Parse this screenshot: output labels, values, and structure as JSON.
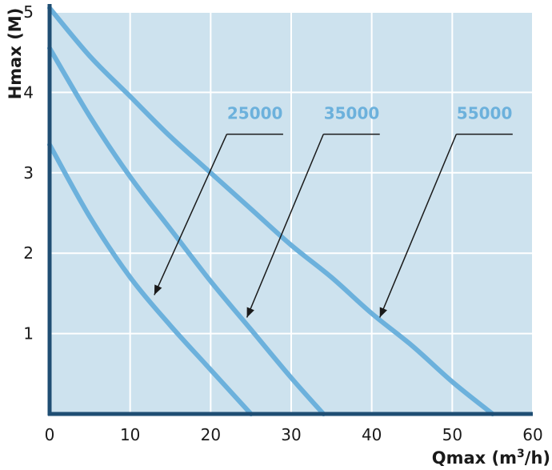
{
  "chart_data": {
    "type": "line",
    "xlabel": "Qmax (m",
    "xlabel_sup": "3",
    "xlabel_end": "/h)",
    "ylabel": "Hmax (M)",
    "xlim": [
      0,
      60
    ],
    "ylim": [
      0,
      5
    ],
    "x_ticks": [
      "0",
      "10",
      "20",
      "30",
      "40",
      "50",
      "60"
    ],
    "y_ticks": [
      "1",
      "2",
      "3",
      "4",
      "5"
    ],
    "grid": true,
    "colors": {
      "plot_background": "#cde2ee",
      "grid": "#ffffff",
      "axis": "#1f4e73",
      "curve": "#6cb1dc",
      "label": "#6cb1dc",
      "pointer": "#1a1a1a"
    },
    "series": [
      {
        "name": "25000",
        "x": [
          0,
          5,
          10,
          15,
          20,
          25
        ],
        "y": [
          3.35,
          2.45,
          1.7,
          1.1,
          0.55,
          0.0
        ]
      },
      {
        "name": "35000",
        "x": [
          0,
          5,
          10,
          15,
          20,
          25,
          30,
          34
        ],
        "y": [
          4.55,
          3.7,
          2.95,
          2.3,
          1.65,
          1.05,
          0.45,
          0.0
        ]
      },
      {
        "name": "55000",
        "x": [
          0,
          5,
          10,
          15,
          20,
          25,
          30,
          35,
          40,
          45,
          50,
          55
        ],
        "y": [
          5.05,
          4.45,
          3.95,
          3.45,
          3.0,
          2.55,
          2.1,
          1.7,
          1.25,
          0.85,
          0.4,
          0.0
        ]
      }
    ],
    "annotations": [
      {
        "text": "25000",
        "line_x": [
          22,
          29
        ],
        "line_y": 3.48,
        "arrow_to": [
          13,
          1.48
        ]
      },
      {
        "text": "35000",
        "line_x": [
          34,
          41
        ],
        "line_y": 3.48,
        "arrow_to": [
          24.5,
          1.2
        ]
      },
      {
        "text": "55000",
        "line_x": [
          50.5,
          57.5
        ],
        "line_y": 3.48,
        "arrow_to": [
          41,
          1.2
        ]
      }
    ]
  }
}
